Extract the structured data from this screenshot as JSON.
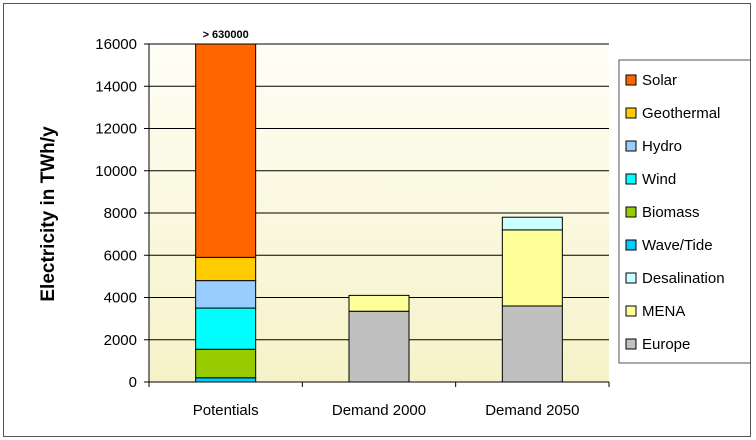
{
  "chart_data": {
    "type": "bar",
    "stacked": true,
    "ylabel": "Electricity in TWh/y",
    "ylim": [
      0,
      16000
    ],
    "yticks": [
      0,
      2000,
      4000,
      6000,
      8000,
      10000,
      12000,
      14000,
      16000
    ],
    "categories": [
      "Potentials",
      "Demand 2000",
      "Demand 2050"
    ],
    "annotation": {
      "category": "Potentials",
      "text": "> 630000"
    },
    "grid": true,
    "legend_position": "right",
    "series": [
      {
        "name": "Europe",
        "color": "#c0c0c0",
        "values": [
          0,
          3350,
          3600
        ]
      },
      {
        "name": "MENA",
        "color": "#ffff99",
        "values": [
          0,
          750,
          3600
        ]
      },
      {
        "name": "Desalination",
        "color": "#ccffff",
        "values": [
          0,
          0,
          600
        ]
      },
      {
        "name": "Wave/Tide",
        "color": "#00ccff",
        "values": [
          200,
          0,
          0
        ]
      },
      {
        "name": "Biomass",
        "color": "#99cc00",
        "values": [
          1350,
          0,
          0
        ]
      },
      {
        "name": "Wind",
        "color": "#00ffff",
        "values": [
          1950,
          0,
          0
        ]
      },
      {
        "name": "Hydro",
        "color": "#99ccff",
        "values": [
          1300,
          0,
          0
        ]
      },
      {
        "name": "Geothermal",
        "color": "#ffcc00",
        "values": [
          1100,
          0,
          0
        ]
      },
      {
        "name": "Solar",
        "color": "#ff6600",
        "values": [
          10200,
          0,
          0
        ]
      }
    ],
    "legend_order": [
      "Solar",
      "Geothermal",
      "Hydro",
      "Wind",
      "Biomass",
      "Wave/Tide",
      "Desalination",
      "MENA",
      "Europe"
    ]
  }
}
